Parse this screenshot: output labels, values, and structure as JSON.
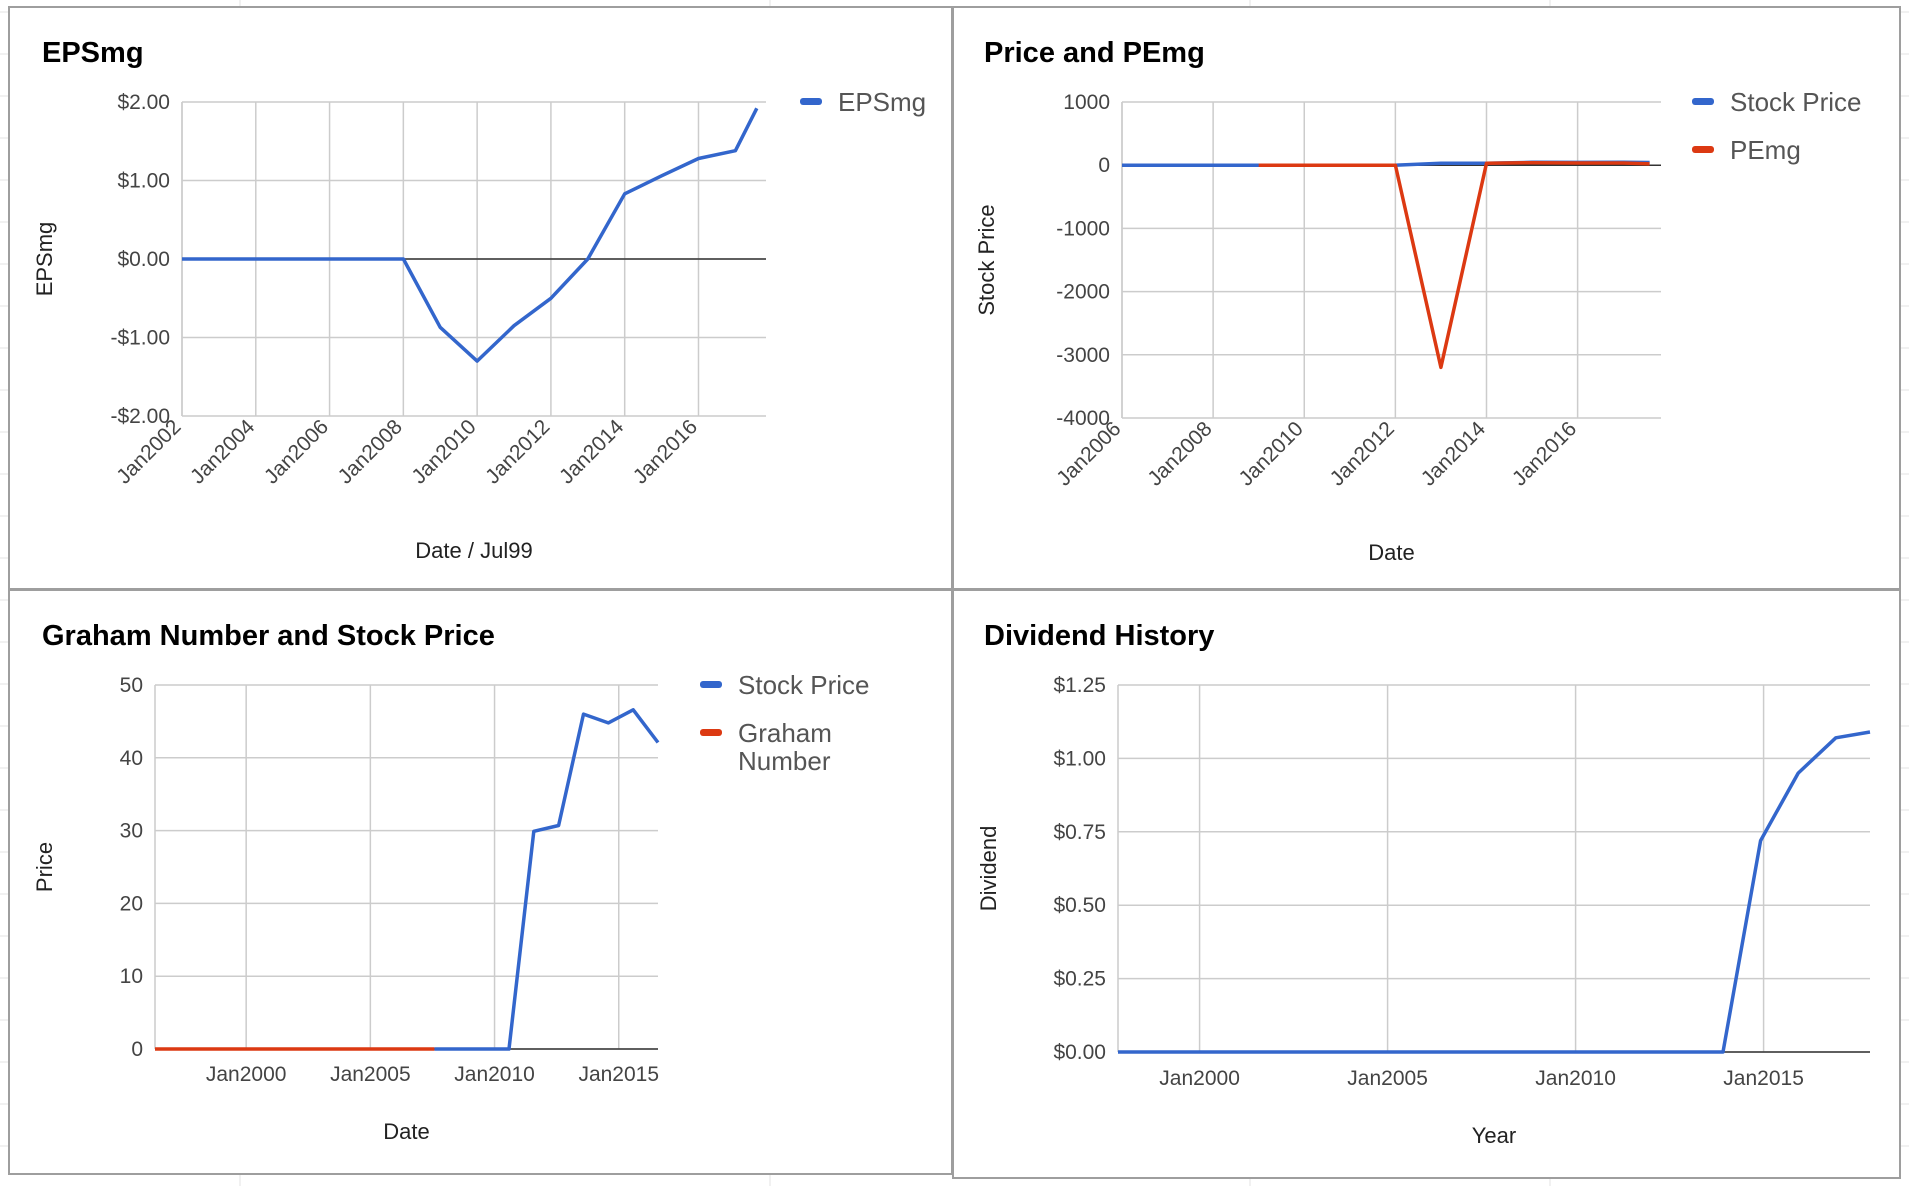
{
  "charts": [
    {
      "title": "EPSmg",
      "xlabel": "Date / Jul99",
      "ylabel": "EPSmg",
      "legend": [
        {
          "name": "EPSmg",
          "color": "#3366cc"
        }
      ],
      "yticks": [
        "$2.00",
        "$1.00",
        "$0.00",
        "-$1.00",
        "-$2.00"
      ],
      "xticks": [
        "Jan2002",
        "Jan2004",
        "Jan2006",
        "Jan2008",
        "Jan2010",
        "Jan2012",
        "Jan2014",
        "Jan2016"
      ]
    },
    {
      "title": "Price and PEmg",
      "xlabel": "Date",
      "ylabel": "Stock Price",
      "legend": [
        {
          "name": "Stock Price",
          "color": "#3366cc"
        },
        {
          "name": "PEmg",
          "color": "#dc3912"
        }
      ],
      "yticks": [
        "1000",
        "0",
        "-1000",
        "-2000",
        "-3000",
        "-4000"
      ],
      "xticks": [
        "Jan2006",
        "Jan2008",
        "Jan2010",
        "Jan2012",
        "Jan2014",
        "Jan2016"
      ]
    },
    {
      "title": "Graham Number and Stock Price",
      "xlabel": "Date",
      "ylabel": "Price",
      "legend": [
        {
          "name": "Stock Price",
          "color": "#3366cc"
        },
        {
          "name": "Graham Number",
          "color": "#dc3912"
        }
      ],
      "yticks": [
        "50",
        "40",
        "30",
        "20",
        "10",
        "0"
      ],
      "xticks": [
        "Jan2000",
        "Jan2005",
        "Jan2010",
        "Jan2015"
      ]
    },
    {
      "title": "Dividend History",
      "xlabel": "Year",
      "ylabel": "Dividend",
      "legend": [],
      "yticks": [
        "$1.25",
        "$1.00",
        "$0.75",
        "$0.50",
        "$0.25",
        "$0.00"
      ],
      "xticks": [
        "Jan2000",
        "Jan2005",
        "Jan2010",
        "Jan2015"
      ]
    }
  ],
  "chart_data": [
    {
      "type": "line",
      "title": "EPSmg",
      "xlabel": "Date / Jul99",
      "ylabel": "EPSmg",
      "xlim": [
        2002.0,
        2017.83
      ],
      "ylim": [
        -2,
        2
      ],
      "grid": true,
      "legend_position": "right",
      "series": [
        {
          "name": "EPSmg",
          "color": "#3366cc",
          "x": [
            2002.0,
            2003.0,
            2004.0,
            2005.0,
            2006.0,
            2007.0,
            2008.0,
            2009.0,
            2010.0,
            2011.0,
            2012.0,
            2013.0,
            2014.0,
            2015.0,
            2016.0,
            2017.0,
            2017.58
          ],
          "y": [
            0,
            0,
            0,
            0,
            0,
            0,
            0,
            -0.87,
            -1.3,
            -0.85,
            -0.5,
            0,
            0.83,
            1.06,
            1.28,
            1.38,
            1.92
          ]
        }
      ]
    },
    {
      "type": "line",
      "title": "Price and PEmg",
      "xlabel": "Date",
      "ylabel": "Stock Price",
      "xlim": [
        2006.0,
        2017.83
      ],
      "ylim": [
        -4000,
        1000
      ],
      "grid": true,
      "legend_position": "right",
      "series": [
        {
          "name": "Stock Price",
          "color": "#3366cc",
          "x": [
            2006.0,
            2007.0,
            2008.0,
            2009.0,
            2010.0,
            2011.0,
            2012.0,
            2013.0,
            2014.0,
            2015.0,
            2016.0,
            2017.0,
            2017.58
          ],
          "y": [
            0,
            0,
            0,
            0,
            0,
            0,
            0,
            30,
            31,
            46,
            45,
            47,
            42
          ]
        },
        {
          "name": "PEmg",
          "color": "#dc3912",
          "x": [
            2009.0,
            2010.0,
            2011.0,
            2012.0,
            2013.0,
            2014.0,
            2015.0,
            2016.0,
            2017.0,
            2017.58
          ],
          "y": [
            0,
            0,
            0,
            0,
            -3200,
            30,
            40,
            35,
            35,
            20
          ]
        }
      ]
    },
    {
      "type": "line",
      "title": "Graham Number and Stock Price",
      "xlabel": "Date",
      "ylabel": "Price",
      "xlim": [
        1996.33,
        2016.58
      ],
      "ylim": [
        0,
        50
      ],
      "grid": true,
      "legend_position": "right",
      "series": [
        {
          "name": "Stock Price",
          "color": "#3366cc",
          "x": [
            2007.58,
            2008.58,
            2009.58,
            2010.58,
            2011.58,
            2012.58,
            2013.58,
            2014.58,
            2015.58,
            2016.58
          ],
          "y": [
            0,
            0,
            0,
            0,
            29.9,
            30.7,
            46.0,
            44.8,
            46.6,
            42.1
          ]
        },
        {
          "name": "Graham Number",
          "color": "#dc3912",
          "x": [
            1996.33,
            2007.58
          ],
          "y": [
            0,
            0
          ]
        }
      ]
    },
    {
      "type": "line",
      "title": "Dividend History",
      "xlabel": "Year",
      "ylabel": "Dividend",
      "xlim": [
        1997.83,
        2017.83
      ],
      "ylim": [
        0,
        1.25
      ],
      "grid": true,
      "legend_position": "none",
      "series": [
        {
          "name": "",
          "color": "#3366cc",
          "x": [
            1997.83,
            2013.92,
            2014.92,
            2015.92,
            2016.92,
            2017.83
          ],
          "y": [
            0,
            0,
            0.72,
            0.95,
            1.07,
            1.09
          ]
        }
      ]
    }
  ]
}
